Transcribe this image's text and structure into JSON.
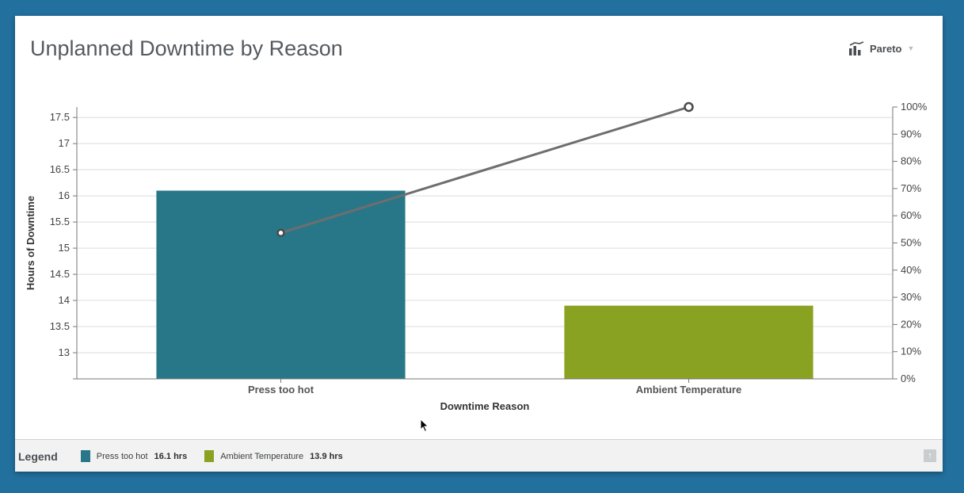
{
  "header": {
    "title": "Unplanned Downtime by Reason",
    "chart_type_label": "Pareto",
    "chart_type_icon": "pareto-chart-icon",
    "dropdown_icon": "caret-down-icon"
  },
  "chart_data": {
    "type": "bar",
    "categories": [
      "Press too hot",
      "Ambient Temperature"
    ],
    "series": [
      {
        "values": [
          16.1,
          13.9
        ],
        "colors": [
          "#287789",
          "#8aa222"
        ]
      }
    ],
    "cumulative_line": {
      "values": [
        53.7,
        100
      ],
      "color": "#6e6e6e"
    },
    "xlabel": "Downtime Reason",
    "ylabel": "Hours of Downtime",
    "ylim": [
      12.5,
      17.7
    ],
    "y_ticks": [
      13,
      13.5,
      14,
      14.5,
      15,
      15.5,
      16,
      16.5,
      17,
      17.5
    ],
    "y_tick_labels": [
      "13",
      "13.5",
      "14",
      "14.5",
      "15",
      "15.5",
      "16",
      "16.5",
      "17",
      "17.5"
    ],
    "y2lim": [
      0,
      100
    ],
    "y2_ticks": [
      0,
      10,
      20,
      30,
      40,
      50,
      60,
      70,
      80,
      90,
      100
    ],
    "y2_tick_labels": [
      "0%",
      "10%",
      "20%",
      "30%",
      "40%",
      "50%",
      "60%",
      "70%",
      "80%",
      "90%",
      "100%"
    ],
    "grid": true
  },
  "legend": {
    "title": "Legend",
    "items": [
      {
        "label": "Press too hot",
        "value": "16.1 hrs",
        "color": "#287789"
      },
      {
        "label": "Ambient Temperature",
        "value": "13.9 hrs",
        "color": "#8aa222"
      }
    ],
    "scroll_top_icon": "arrow-up-icon",
    "scroll_top_glyph": "↑"
  }
}
